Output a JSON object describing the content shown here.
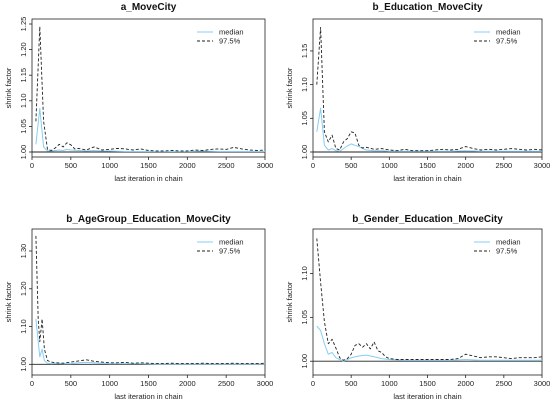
{
  "colors": {
    "median": "#87cef0",
    "quantile": "#222222",
    "axis": "#222222",
    "refline": "#222222"
  },
  "chart_data": [
    {
      "type": "line",
      "title": "a_MoveCity",
      "xlabel": "last iteration in chain",
      "ylabel": "shrink factor",
      "xlim": [
        0,
        3000
      ],
      "ylim": [
        1.0,
        1.25
      ],
      "xticks": [
        0,
        500,
        1000,
        1500,
        2000,
        2500,
        3000
      ],
      "yticks": [
        1.0,
        1.05,
        1.1,
        1.15,
        1.2,
        1.25
      ],
      "ytick_labels": [
        "1.00",
        "1.05",
        "1.10",
        "1.15",
        "1.20",
        "1.25"
      ],
      "legend": [
        "median",
        "97.5%"
      ],
      "series": [
        {
          "name": "median",
          "x": [
            50,
            100,
            150,
            200,
            250,
            300,
            350,
            400,
            450,
            500,
            600,
            700,
            800,
            900,
            1000,
            1200,
            1400,
            1600,
            1800,
            2000,
            2200,
            2400,
            2600,
            2800,
            3000
          ],
          "values": [
            1.015,
            1.085,
            1.01,
            1.002,
            1.002,
            1.003,
            1.004,
            1.003,
            1.005,
            1.004,
            1.003,
            1.002,
            1.003,
            1.002,
            1.002,
            1.001,
            1.001,
            1.001,
            1.001,
            1.001,
            1.002,
            1.001,
            1.001,
            1.001,
            1.001
          ]
        },
        {
          "name": "97.5%",
          "x": [
            50,
            100,
            150,
            200,
            250,
            300,
            350,
            400,
            450,
            500,
            550,
            600,
            700,
            800,
            900,
            1000,
            1100,
            1200,
            1300,
            1400,
            1500,
            1600,
            1700,
            1800,
            1900,
            2000,
            2100,
            2200,
            2300,
            2400,
            2500,
            2600,
            2700,
            2800,
            2900,
            3000
          ],
          "values": [
            1.06,
            1.245,
            1.06,
            1.005,
            1.003,
            1.008,
            1.015,
            1.01,
            1.018,
            1.014,
            1.006,
            1.007,
            1.004,
            1.01,
            1.004,
            1.005,
            1.007,
            1.006,
            1.004,
            1.006,
            1.003,
            1.002,
            1.002,
            1.003,
            1.002,
            1.002,
            1.004,
            1.003,
            1.005,
            1.006,
            1.005,
            1.009,
            1.006,
            1.004,
            1.003,
            1.004
          ]
        }
      ]
    },
    {
      "type": "line",
      "title": "b_Education_MoveCity",
      "xlabel": "last iteration in chain",
      "ylabel": "shrink factor",
      "xlim": [
        0,
        3000
      ],
      "ylim": [
        1.0,
        1.19
      ],
      "xticks": [
        0,
        500,
        1000,
        1500,
        2000,
        2500,
        3000
      ],
      "yticks": [
        1.0,
        1.05,
        1.1,
        1.15
      ],
      "ytick_labels": [
        "1.00",
        "1.05",
        "1.10",
        "1.15"
      ],
      "legend": [
        "median",
        "97.5%"
      ],
      "series": [
        {
          "name": "median",
          "x": [
            50,
            100,
            150,
            200,
            250,
            300,
            350,
            400,
            450,
            500,
            550,
            600,
            650,
            700,
            800,
            900,
            1000,
            1200,
            1400,
            1600,
            1800,
            2000,
            2200,
            2400,
            2600,
            2800,
            3000
          ],
          "values": [
            1.03,
            1.065,
            1.01,
            1.003,
            1.005,
            1.002,
            1.001,
            1.005,
            1.009,
            1.012,
            1.01,
            1.008,
            1.005,
            1.003,
            1.002,
            1.002,
            1.001,
            1.001,
            1.001,
            1.001,
            1.001,
            1.002,
            1.001,
            1.001,
            1.001,
            1.001,
            1.001
          ]
        },
        {
          "name": "97.5%",
          "x": [
            50,
            100,
            150,
            200,
            250,
            300,
            350,
            400,
            450,
            500,
            550,
            600,
            650,
            700,
            800,
            900,
            1000,
            1100,
            1200,
            1300,
            1400,
            1500,
            1600,
            1700,
            1800,
            1900,
            2000,
            2100,
            2200,
            2300,
            2400,
            2500,
            2600,
            2700,
            2800,
            2900,
            3000
          ],
          "values": [
            1.1,
            1.185,
            1.03,
            1.015,
            1.025,
            1.005,
            1.003,
            1.015,
            1.02,
            1.03,
            1.028,
            1.01,
            1.006,
            1.007,
            1.004,
            1.005,
            1.003,
            1.002,
            1.004,
            1.002,
            1.002,
            1.002,
            1.003,
            1.004,
            1.003,
            1.004,
            1.008,
            1.005,
            1.003,
            1.004,
            1.003,
            1.004,
            1.005,
            1.004,
            1.003,
            1.004,
            1.003
          ]
        }
      ]
    },
    {
      "type": "line",
      "title": "b_AgeGroup_Education_MoveCity",
      "xlabel": "last iteration in chain",
      "ylabel": "shrink factor",
      "xlim": [
        0,
        3000
      ],
      "ylim": [
        0.985,
        1.345
      ],
      "xticks": [
        0,
        500,
        1000,
        1500,
        2000,
        2500,
        3000
      ],
      "yticks": [
        1.0,
        1.1,
        1.2,
        1.3
      ],
      "ytick_labels": [
        "1.00",
        "1.10",
        "1.20",
        "1.30"
      ],
      "legend": [
        "median",
        "97.5%"
      ],
      "series": [
        {
          "name": "median",
          "x": [
            50,
            100,
            130,
            160,
            200,
            250,
            300,
            400,
            500,
            600,
            700,
            800,
            900,
            1000,
            1200,
            1400,
            1600,
            1800,
            2000,
            2200,
            2400,
            2600,
            2800,
            3000
          ],
          "values": [
            1.12,
            1.02,
            1.04,
            1.01,
            1.003,
            1.002,
            1.003,
            1.002,
            1.002,
            1.004,
            1.005,
            1.004,
            1.003,
            1.002,
            1.002,
            1.002,
            1.001,
            1.001,
            1.001,
            1.001,
            1.001,
            1.001,
            1.001,
            1.001
          ]
        },
        {
          "name": "97.5%",
          "x": [
            50,
            80,
            100,
            130,
            160,
            200,
            250,
            300,
            400,
            500,
            600,
            700,
            800,
            900,
            1000,
            1100,
            1200,
            1300,
            1400,
            1500,
            1600,
            1700,
            1800,
            1900,
            2000,
            2100,
            2200,
            2300,
            2400,
            2500,
            2600,
            2700,
            2800,
            2900,
            3000
          ],
          "values": [
            1.34,
            1.12,
            1.06,
            1.12,
            1.04,
            1.01,
            1.006,
            1.004,
            1.003,
            1.006,
            1.009,
            1.012,
            1.008,
            1.006,
            1.004,
            1.004,
            1.005,
            1.003,
            1.004,
            1.003,
            1.002,
            1.002,
            1.003,
            1.002,
            1.002,
            1.002,
            1.003,
            1.002,
            1.002,
            1.002,
            1.003,
            1.002,
            1.002,
            1.002,
            1.003
          ]
        }
      ]
    },
    {
      "type": "line",
      "title": "b_Gender_Education_MoveCity",
      "xlabel": "last iteration in chain",
      "ylabel": "shrink factor",
      "xlim": [
        0,
        3000
      ],
      "ylim": [
        0.99,
        1.145
      ],
      "xticks": [
        0,
        500,
        1000,
        1500,
        2000,
        2500,
        3000
      ],
      "yticks": [
        1.0,
        1.05,
        1.1
      ],
      "ytick_labels": [
        "1.00",
        "1.05",
        "1.10"
      ],
      "legend": [
        "median",
        "97.5%"
      ],
      "series": [
        {
          "name": "median",
          "x": [
            50,
            100,
            150,
            200,
            250,
            300,
            350,
            400,
            450,
            500,
            600,
            700,
            800,
            900,
            1000,
            1200,
            1400,
            1600,
            1800,
            2000,
            2200,
            2400,
            2600,
            2800,
            3000
          ],
          "values": [
            1.04,
            1.035,
            1.02,
            1.008,
            1.01,
            1.004,
            1.002,
            1.0,
            1.002,
            1.004,
            1.006,
            1.007,
            1.005,
            1.003,
            1.002,
            1.001,
            1.001,
            1.001,
            1.001,
            1.002,
            1.001,
            1.001,
            1.001,
            1.001,
            1.001
          ]
        },
        {
          "name": "97.5%",
          "x": [
            50,
            100,
            150,
            200,
            250,
            300,
            350,
            400,
            450,
            500,
            550,
            600,
            650,
            700,
            750,
            800,
            850,
            900,
            950,
            1000,
            1100,
            1200,
            1300,
            1400,
            1500,
            1600,
            1700,
            1800,
            1900,
            2000,
            2100,
            2200,
            2300,
            2400,
            2500,
            2600,
            2700,
            2800,
            2900,
            3000
          ],
          "values": [
            1.14,
            1.09,
            1.045,
            1.02,
            1.025,
            1.015,
            1.004,
            1.001,
            1.003,
            1.008,
            1.018,
            1.02,
            1.016,
            1.02,
            1.014,
            1.022,
            1.012,
            1.01,
            1.005,
            1.003,
            1.002,
            1.002,
            1.002,
            1.002,
            1.002,
            1.002,
            1.002,
            1.002,
            1.003,
            1.008,
            1.006,
            1.004,
            1.005,
            1.005,
            1.004,
            1.003,
            1.004,
            1.004,
            1.004,
            1.005
          ]
        }
      ]
    }
  ]
}
